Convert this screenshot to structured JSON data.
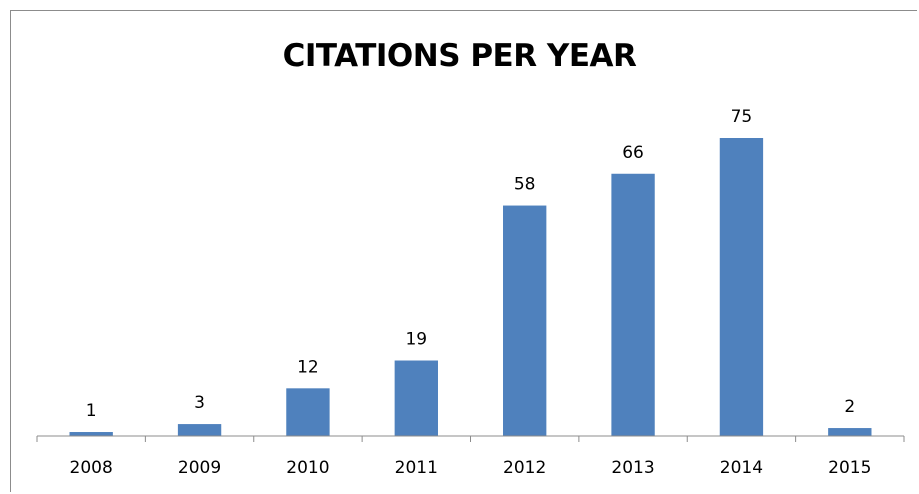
{
  "chart_data": {
    "type": "bar",
    "title": "CITATIONS PER YEAR",
    "xlabel": "",
    "ylabel": "",
    "categories": [
      "2008",
      "2009",
      "2010",
      "2011",
      "2012",
      "2013",
      "2014",
      "2015"
    ],
    "values": [
      1,
      3,
      12,
      19,
      58,
      66,
      75,
      2
    ],
    "ylim": [
      0,
      75
    ],
    "grid": false,
    "legend": "none",
    "bar_color": "#4f81bd",
    "axis_color": "#8c8c8c"
  }
}
